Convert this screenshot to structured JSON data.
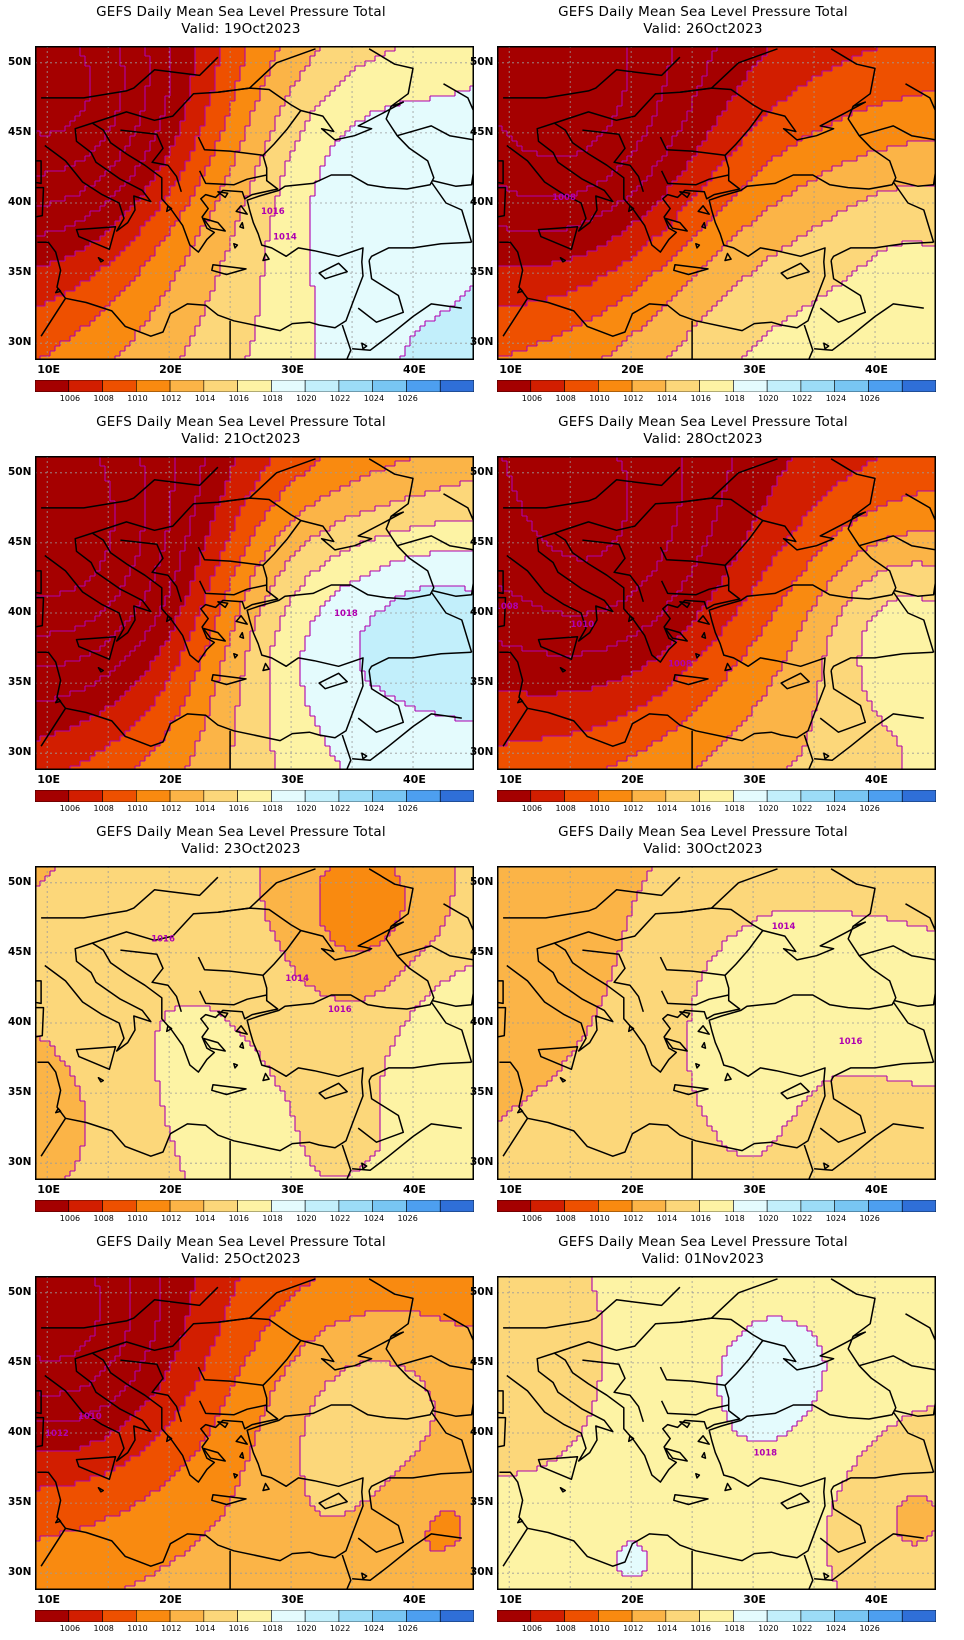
{
  "panels": [
    {
      "title": "GEFS Daily Mean Sea Level Pressure Total",
      "valid": "Valid: 19Oct2023",
      "labels": [
        "1016",
        "1014"
      ]
    },
    {
      "title": "GEFS Daily Mean Sea Level Pressure Total",
      "valid": "Valid: 26Oct2023",
      "labels": [
        "1008"
      ]
    },
    {
      "title": "GEFS Daily Mean Sea Level Pressure Total",
      "valid": "Valid: 21Oct2023",
      "labels": [
        "1018"
      ]
    },
    {
      "title": "GEFS Daily Mean Sea Level Pressure Total",
      "valid": "Valid: 28Oct2023",
      "labels": [
        "1008",
        "1010",
        "1008"
      ]
    },
    {
      "title": "GEFS Daily Mean Sea Level Pressure Total",
      "valid": "Valid: 23Oct2023",
      "labels": [
        "1016",
        "1014",
        "1016"
      ]
    },
    {
      "title": "GEFS Daily Mean Sea Level Pressure Total",
      "valid": "Valid: 30Oct2023",
      "labels": [
        "1014",
        "1016"
      ]
    },
    {
      "title": "GEFS Daily Mean Sea Level Pressure Total",
      "valid": "Valid: 25Oct2023",
      "labels": [
        "1010",
        "1012"
      ]
    },
    {
      "title": "GEFS Daily Mean Sea Level Pressure Total",
      "valid": "Valid: 01Nov2023",
      "labels": [
        "1018"
      ]
    }
  ],
  "axes": {
    "lat_labels": [
      "50N",
      "45N",
      "40N",
      "35N",
      "30N"
    ],
    "lon_labels": [
      "10E",
      "20E",
      "30E",
      "40E"
    ]
  },
  "colorbar": {
    "labels": [
      "1006",
      "1008",
      "1010",
      "1012",
      "1014",
      "1016",
      "1018",
      "1020",
      "1022",
      "1024",
      "1026"
    ],
    "colors": [
      "#a50000",
      "#d21e00",
      "#ee5000",
      "#f98a10",
      "#fbb447",
      "#fcd77a",
      "#fdf3a4",
      "#e4fbfd",
      "#c2effb",
      "#9cdcf7",
      "#78c6f3",
      "#4d9ff0",
      "#2f6fd8"
    ]
  },
  "colors": {
    "contour": "#b000b0",
    "coast": "#000000",
    "grid": "#9a9a9a"
  }
}
